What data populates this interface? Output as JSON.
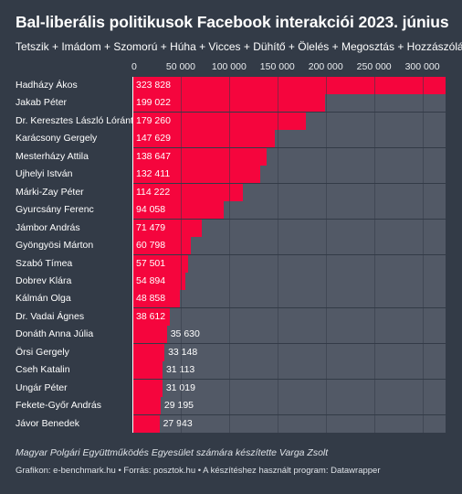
{
  "chart_data": {
    "type": "bar",
    "orientation": "horizontal",
    "title": "Bal-liberális politikusok Facebook interakciói 2023. június",
    "subtitle": "Tetszik + Imádom + Szomorú + Húha + Vicces + Dühítő + Ölelés + Megosztás + Hozzászólás",
    "xlim": [
      0,
      324000
    ],
    "tick_values": [
      0,
      50000,
      100000,
      150000,
      200000,
      250000,
      300000
    ],
    "tick_labels": [
      "0",
      "50 000",
      "100 000",
      "150 000",
      "200 000",
      "250 000",
      "300 000"
    ],
    "categories": [
      "Hadházy Ákos",
      "Jakab Péter",
      "Dr. Keresztes László Lóránt",
      "Karácsony Gergely",
      "Mesterházy Attila",
      "Ujhelyi István",
      "Márki-Zay Péter",
      "Gyurcsány Ferenc",
      "Jámbor András",
      "Gyöngyösi Márton",
      "Szabó Tímea",
      "Dobrev Klára",
      "Kálmán Olga",
      "Dr. Vadai Ágnes",
      "Donáth Anna Júlia",
      "Örsi Gergely",
      "Cseh Katalin",
      "Ungár Péter",
      "Fekete-Győr András",
      "Jávor Benedek"
    ],
    "values": [
      323828,
      199022,
      179260,
      147629,
      138647,
      132411,
      114222,
      94058,
      71479,
      60798,
      57501,
      54894,
      48858,
      38612,
      35630,
      33148,
      31113,
      31019,
      29195,
      27943
    ],
    "value_labels": [
      "323 828",
      "199 022",
      "179 260",
      "147 629",
      "138 647",
      "132 411",
      "114 222",
      "94 058",
      "71 479",
      "60 798",
      "57 501",
      "54 894",
      "48 858",
      "38 612",
      "35 630",
      "33 148",
      "31 113",
      "31 019",
      "29 195",
      "27 943"
    ],
    "colors": {
      "background": "#333b47",
      "bar": "#f5053d",
      "track": "#525966",
      "text": "#ffffff"
    }
  },
  "credit": "Magyar Polgári Együttműködés Egyesület számára készítette Varga Zsolt",
  "footer": "Grafikon: e-benchmark.hu • Forrás: posztok.hu • A készítéshez használt program: Datawrapper"
}
